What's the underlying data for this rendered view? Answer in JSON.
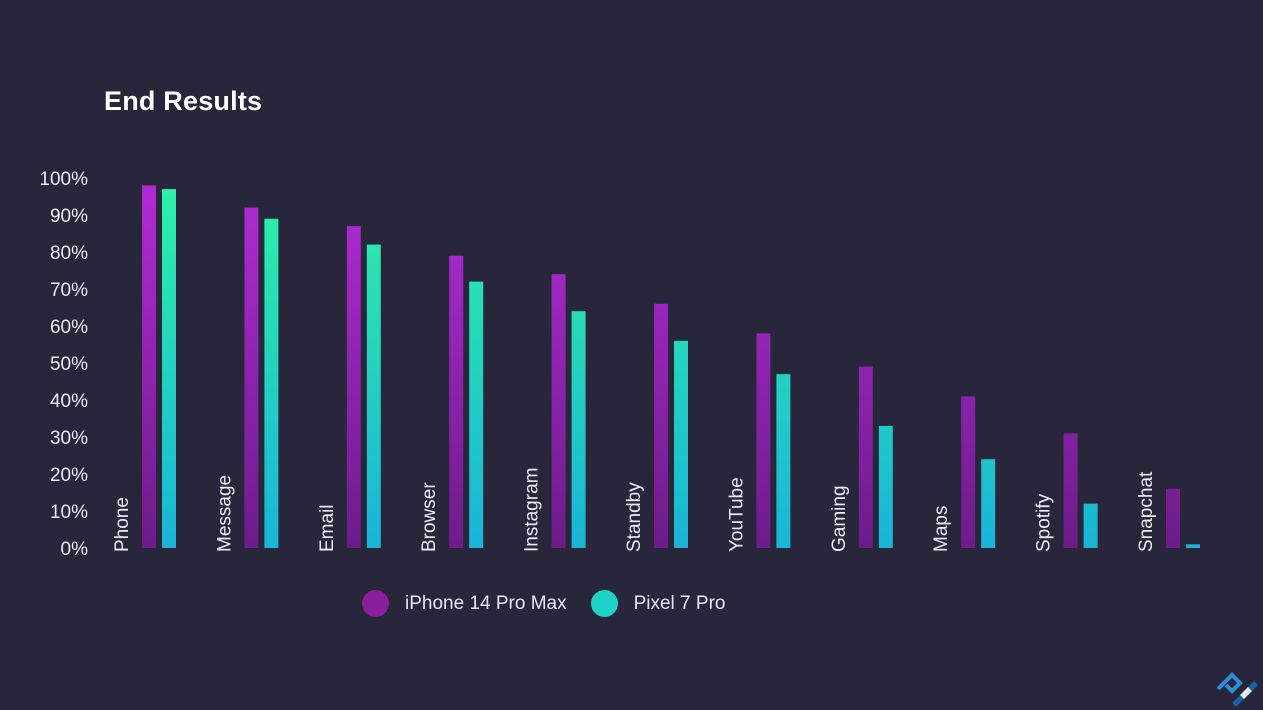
{
  "title": "End Results",
  "chart_data": {
    "type": "bar",
    "title": "End Results",
    "xlabel": "",
    "ylabel": "",
    "ylim": [
      0,
      100
    ],
    "yticks": [
      "0%",
      "10%",
      "20%",
      "30%",
      "40%",
      "50%",
      "60%",
      "70%",
      "80%",
      "90%",
      "100%"
    ],
    "categories": [
      "Phone",
      "Message",
      "Email",
      "Browser",
      "Instagram",
      "Standby",
      "YouTube",
      "Gaming",
      "Maps",
      "Spotify",
      "Snapchat"
    ],
    "series": [
      {
        "name": "iPhone 14 Pro Max",
        "values": [
          98,
          92,
          87,
          79,
          74,
          66,
          58,
          49,
          41,
          31,
          16
        ]
      },
      {
        "name": "Pixel 7 Pro",
        "values": [
          97,
          89,
          82,
          72,
          64,
          56,
          47,
          33,
          24,
          12,
          1
        ]
      }
    ],
    "grid": false,
    "legend_position": "bottom-center",
    "colors": {
      "iphone_top": "#b22bd6",
      "iphone_bottom": "#6d1c8a",
      "pixel_top": "#2ff2a4",
      "pixel_bottom": "#19b4d8",
      "legend_iphone": "#8a1f9c",
      "legend_pixel": "#1fd2c8"
    }
  },
  "legend": {
    "items": [
      {
        "label": "iPhone 14 Pro Max",
        "color": "#8a1f9c"
      },
      {
        "label": "Pixel 7 Pro",
        "color": "#1fd2c8"
      }
    ]
  },
  "logo": {
    "icon": "brand-logo-icon"
  }
}
